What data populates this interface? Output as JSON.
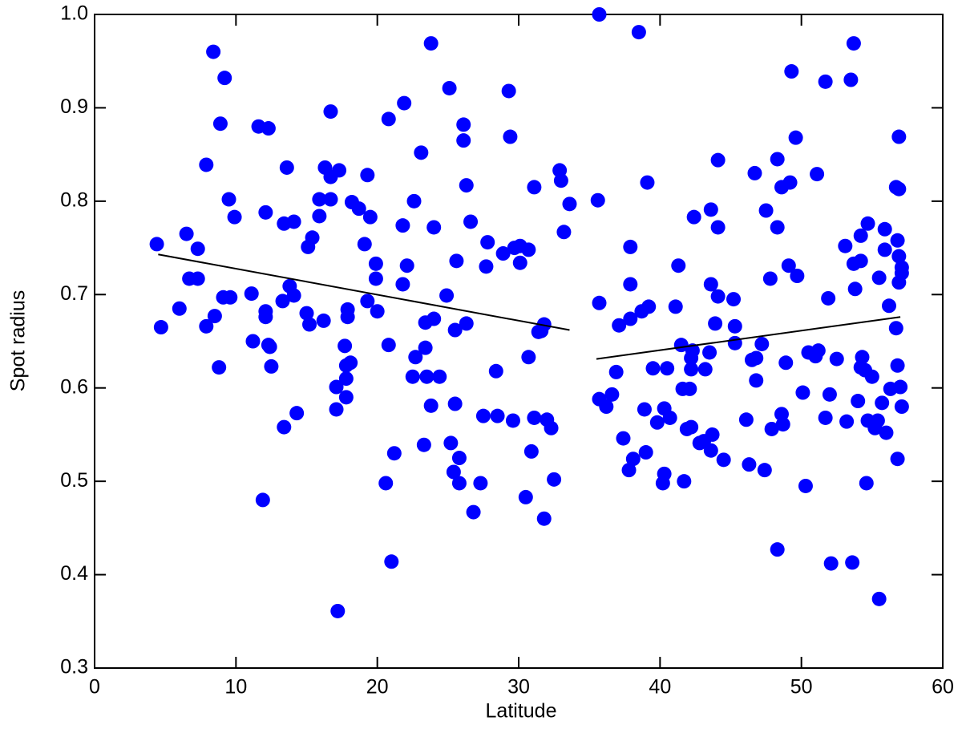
{
  "chart_data": {
    "type": "scatter",
    "x_label": "Latitude",
    "y_label": "Spot radius",
    "color": "#0000ff",
    "xlim": [
      0,
      60
    ],
    "xticks": [
      0,
      10,
      20,
      30,
      40,
      50,
      60
    ],
    "ylim": [
      0.3,
      1.0
    ],
    "yticks": [
      0.3,
      0.4,
      0.5,
      0.6,
      0.7,
      0.8,
      0.9,
      {
        "value": 1,
        "label": "1.0"
      }
    ],
    "x": [
      4.4,
      4.7,
      6.0,
      6.5,
      6.7,
      7.3,
      7.3,
      7.9,
      7.9,
      8.4,
      8.5,
      8.8,
      8.9,
      9.2,
      9.1,
      9.5,
      9.6,
      9.9,
      11.1,
      11.2,
      11.6,
      11.9,
      12.3,
      12.1,
      12.1,
      12.1,
      12.3,
      12.4,
      12.5,
      13.4,
      13.3,
      13.4,
      13.6,
      13.8,
      14.1,
      14.1,
      14.3,
      15.0,
      15.1,
      15.2,
      15.4,
      15.9,
      15.9,
      16.2,
      16.3,
      16.7,
      16.7,
      16.7,
      17.3,
      17.1,
      17.1,
      17.2,
      17.7,
      17.8,
      17.8,
      17.8,
      17.9,
      17.9,
      18.1,
      18.2,
      18.7,
      19.1,
      19.3,
      19.3,
      19.5,
      19.9,
      19.9,
      20.0,
      20.6,
      20.8,
      20.8,
      21.0,
      21.2,
      21.8,
      21.9,
      21.8,
      22.1,
      22.6,
      22.5,
      22.7,
      23.1,
      23.3,
      23.4,
      23.4,
      23.5,
      23.8,
      23.8,
      24.0,
      24.0,
      24.4,
      24.9,
      25.1,
      25.2,
      25.4,
      25.5,
      25.5,
      25.6,
      25.8,
      25.8,
      26.1,
      26.1,
      26.3,
      26.3,
      26.6,
      26.8,
      27.3,
      27.5,
      27.7,
      27.8,
      28.4,
      28.5,
      28.9,
      29.3,
      29.4,
      29.6,
      29.7,
      30.1,
      30.1,
      30.5,
      30.7,
      30.7,
      30.9,
      31.1,
      31.1,
      31.4,
      31.6,
      31.8,
      31.8,
      32.0,
      32.3,
      32.5,
      32.9,
      33.0,
      33.2,
      33.6,
      35.7,
      35.6,
      35.7,
      35.7,
      36.2,
      36.6,
      36.9,
      37.1,
      37.4,
      37.8,
      37.9,
      37.9,
      37.9,
      38.1,
      38.5,
      38.7,
      38.9,
      39.0,
      39.1,
      39.2,
      39.5,
      39.8,
      40.2,
      40.3,
      40.3,
      40.5,
      40.7,
      41.1,
      41.3,
      41.5,
      41.6,
      41.7,
      41.9,
      42.1,
      42.2,
      42.2,
      42.2,
      42.3,
      42.4,
      42.8,
      43.1,
      43.2,
      43.5,
      43.6,
      43.6,
      43.6,
      43.7,
      43.9,
      44.1,
      44.1,
      44.1,
      44.5,
      45.2,
      45.3,
      45.3,
      46.1,
      46.3,
      46.5,
      46.8,
      46.7,
      46.8,
      47.2,
      47.4,
      47.5,
      47.8,
      47.9,
      48.3,
      48.3,
      48.3,
      48.6,
      48.6,
      48.7,
      48.9,
      49.1,
      49.2,
      49.3,
      49.6,
      49.7,
      50.1,
      50.3,
      50.5,
      51.0,
      51.1,
      51.2,
      51.7,
      51.7,
      51.9,
      52.0,
      52.1,
      52.5,
      53.1,
      53.2,
      53.5,
      53.6,
      53.7,
      53.7,
      53.8,
      54.0,
      54.2,
      54.2,
      54.2,
      54.3,
      54.5,
      54.6,
      54.7,
      54.7,
      55.0,
      55.2,
      55.4,
      55.5,
      55.5,
      55.7,
      55.9,
      55.9,
      56.0,
      56.2,
      56.3,
      56.7,
      56.7,
      56.8,
      56.8,
      56.8,
      56.9,
      56.9,
      56.9,
      56.9,
      57.0,
      57.1,
      57.1,
      57.1
    ],
    "values": [
      0.754,
      0.665,
      0.685,
      0.765,
      0.717,
      0.717,
      0.749,
      0.839,
      0.666,
      0.96,
      0.677,
      0.622,
      0.883,
      0.932,
      0.697,
      0.802,
      0.697,
      0.783,
      0.701,
      0.65,
      0.88,
      0.48,
      0.878,
      0.788,
      0.682,
      0.676,
      0.646,
      0.644,
      0.623,
      0.558,
      0.693,
      0.776,
      0.836,
      0.709,
      0.778,
      0.699,
      0.573,
      0.68,
      0.751,
      0.668,
      0.761,
      0.802,
      0.784,
      0.672,
      0.836,
      0.896,
      0.802,
      0.826,
      0.833,
      0.601,
      0.577,
      0.361,
      0.645,
      0.61,
      0.624,
      0.59,
      0.676,
      0.684,
      0.627,
      0.799,
      0.792,
      0.754,
      0.828,
      0.693,
      0.783,
      0.733,
      0.717,
      0.682,
      0.498,
      0.888,
      0.646,
      0.414,
      0.53,
      0.711,
      0.905,
      0.774,
      0.731,
      0.8,
      0.612,
      0.633,
      0.852,
      0.539,
      0.67,
      0.643,
      0.612,
      0.581,
      0.969,
      0.674,
      0.772,
      0.612,
      0.699,
      0.921,
      0.541,
      0.51,
      0.583,
      0.662,
      0.736,
      0.525,
      0.498,
      0.882,
      0.865,
      0.669,
      0.817,
      0.778,
      0.467,
      0.498,
      0.57,
      0.73,
      0.756,
      0.618,
      0.57,
      0.744,
      0.918,
      0.869,
      0.565,
      0.75,
      0.734,
      0.752,
      0.483,
      0.633,
      0.748,
      0.532,
      0.568,
      0.815,
      0.66,
      0.661,
      0.668,
      0.46,
      0.566,
      0.557,
      0.502,
      0.833,
      0.822,
      0.767,
      0.797,
      1.0,
      0.801,
      0.691,
      0.588,
      0.58,
      0.593,
      0.617,
      0.667,
      0.546,
      0.512,
      0.751,
      0.711,
      0.674,
      0.524,
      0.981,
      0.682,
      0.577,
      0.531,
      0.82,
      0.687,
      0.621,
      0.563,
      0.498,
      0.508,
      0.578,
      0.621,
      0.568,
      0.687,
      0.731,
      0.646,
      0.599,
      0.5,
      0.556,
      0.599,
      0.558,
      0.62,
      0.632,
      0.64,
      0.783,
      0.541,
      0.543,
      0.62,
      0.638,
      0.533,
      0.791,
      0.711,
      0.55,
      0.669,
      0.844,
      0.698,
      0.772,
      0.523,
      0.695,
      0.648,
      0.666,
      0.566,
      0.518,
      0.63,
      0.632,
      0.83,
      0.608,
      0.647,
      0.512,
      0.79,
      0.717,
      0.556,
      0.845,
      0.772,
      0.427,
      0.815,
      0.572,
      0.561,
      0.627,
      0.731,
      0.82,
      0.939,
      0.868,
      0.72,
      0.595,
      0.495,
      0.638,
      0.634,
      0.829,
      0.64,
      0.568,
      0.928,
      0.696,
      0.593,
      0.412,
      0.631,
      0.752,
      0.564,
      0.93,
      0.413,
      0.969,
      0.733,
      0.706,
      0.586,
      0.763,
      0.736,
      0.622,
      0.633,
      0.619,
      0.498,
      0.776,
      0.565,
      0.612,
      0.557,
      0.565,
      0.718,
      0.374,
      0.584,
      0.77,
      0.748,
      0.552,
      0.688,
      0.599,
      0.815,
      0.664,
      0.758,
      0.524,
      0.624,
      0.869,
      0.813,
      0.741,
      0.713,
      0.601,
      0.58,
      0.729,
      0.723
    ],
    "lines": [
      {
        "color": "#000000",
        "x": [
          4.5,
          33.6
        ],
        "values": [
          0.743,
          0.662
        ]
      },
      {
        "color": "#000000",
        "x": [
          35.5,
          57.0
        ],
        "values": [
          0.631,
          0.676
        ]
      }
    ]
  }
}
